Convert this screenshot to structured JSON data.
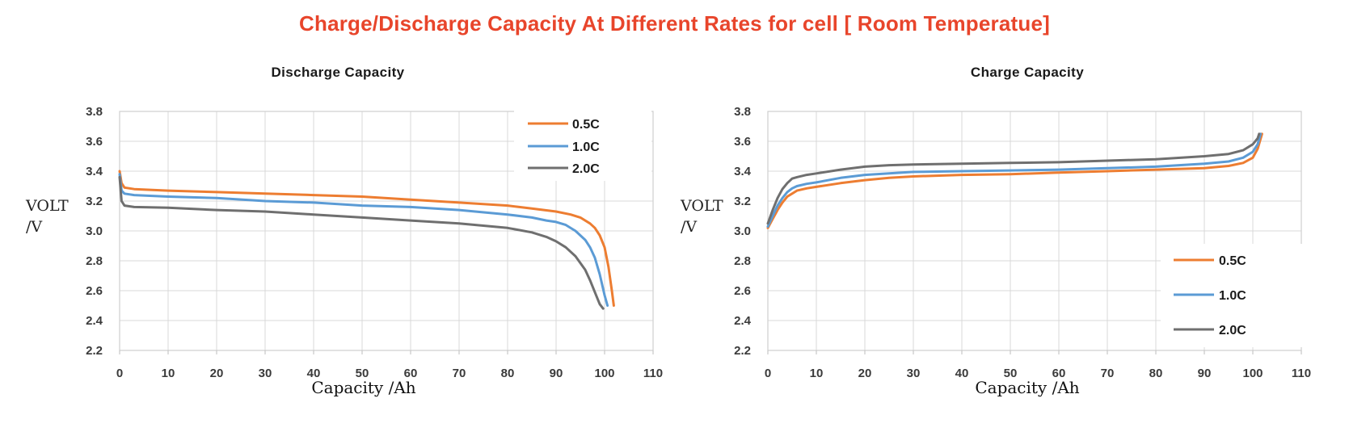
{
  "page_title": "Charge/Discharge Capacity At Different Rates for cell [ Room Temperatue]",
  "title_color": "#e8452b",
  "grid_color": "#d9d9d9",
  "chart_data": [
    {
      "type": "line",
      "title": "Discharge Capacity",
      "xlabel": "Capacity /Ah",
      "ylabel_lines": [
        "VOLT",
        "/V"
      ],
      "xlim": [
        0,
        110
      ],
      "ylim": [
        2.2,
        3.8
      ],
      "xticks": [
        0,
        10,
        20,
        30,
        40,
        50,
        60,
        70,
        80,
        90,
        100,
        110
      ],
      "yticks": [
        "3.8",
        "3.6",
        "3.4",
        "3.2",
        "3.0",
        "2.8",
        "2.6",
        "2.4",
        "2.2"
      ],
      "grid": true,
      "legend_position": "top-right",
      "series": [
        {
          "name": "0.5C",
          "color": "#ED7D31",
          "points": [
            [
              0,
              3.4
            ],
            [
              0.4,
              3.32
            ],
            [
              1,
              3.29
            ],
            [
              3,
              3.28
            ],
            [
              10,
              3.27
            ],
            [
              20,
              3.26
            ],
            [
              30,
              3.25
            ],
            [
              40,
              3.24
            ],
            [
              50,
              3.23
            ],
            [
              60,
              3.21
            ],
            [
              70,
              3.19
            ],
            [
              80,
              3.17
            ],
            [
              85,
              3.15
            ],
            [
              90,
              3.13
            ],
            [
              93,
              3.11
            ],
            [
              95,
              3.09
            ],
            [
              97,
              3.05
            ],
            [
              98,
              3.02
            ],
            [
              99,
              2.97
            ],
            [
              100,
              2.89
            ],
            [
              100.8,
              2.76
            ],
            [
              101.5,
              2.6
            ],
            [
              101.9,
              2.5
            ]
          ]
        },
        {
          "name": "1.0C",
          "color": "#5B9BD5",
          "points": [
            [
              0,
              3.38
            ],
            [
              0.4,
              3.27
            ],
            [
              1,
              3.25
            ],
            [
              3,
              3.24
            ],
            [
              10,
              3.23
            ],
            [
              20,
              3.22
            ],
            [
              30,
              3.2
            ],
            [
              40,
              3.19
            ],
            [
              50,
              3.17
            ],
            [
              60,
              3.16
            ],
            [
              70,
              3.14
            ],
            [
              80,
              3.11
            ],
            [
              85,
              3.09
            ],
            [
              88,
              3.07
            ],
            [
              90,
              3.06
            ],
            [
              92,
              3.04
            ],
            [
              94,
              3.0
            ],
            [
              96,
              2.94
            ],
            [
              97,
              2.89
            ],
            [
              98,
              2.82
            ],
            [
              99,
              2.71
            ],
            [
              100,
              2.57
            ],
            [
              100.6,
              2.5
            ]
          ]
        },
        {
          "name": "2.0C",
          "color": "#6F6F6F",
          "points": [
            [
              0,
              3.36
            ],
            [
              0.4,
              3.2
            ],
            [
              1,
              3.17
            ],
            [
              3,
              3.16
            ],
            [
              10,
              3.155
            ],
            [
              20,
              3.14
            ],
            [
              30,
              3.13
            ],
            [
              40,
              3.11
            ],
            [
              50,
              3.09
            ],
            [
              60,
              3.07
            ],
            [
              70,
              3.05
            ],
            [
              80,
              3.02
            ],
            [
              85,
              2.99
            ],
            [
              88,
              2.96
            ],
            [
              90,
              2.93
            ],
            [
              92,
              2.89
            ],
            [
              94,
              2.83
            ],
            [
              96,
              2.74
            ],
            [
              97,
              2.67
            ],
            [
              98,
              2.59
            ],
            [
              99,
              2.51
            ],
            [
              99.7,
              2.48
            ]
          ]
        }
      ]
    },
    {
      "type": "line",
      "title": "Charge Capacity",
      "xlabel": "Capacity /Ah",
      "ylabel_lines": [
        "VOLT",
        "/V"
      ],
      "xlim": [
        0,
        110
      ],
      "ylim": [
        2.2,
        3.8
      ],
      "xticks": [
        0,
        10,
        20,
        30,
        40,
        50,
        60,
        70,
        80,
        90,
        100,
        110
      ],
      "yticks": [
        "3.8",
        "3.6",
        "3.4",
        "3.2",
        "3.0",
        "2.8",
        "2.6",
        "2.4",
        "2.2"
      ],
      "grid": true,
      "legend_position": "bottom-right",
      "series": [
        {
          "name": "0.5C",
          "color": "#ED7D31",
          "points": [
            [
              0,
              3.02
            ],
            [
              1,
              3.08
            ],
            [
              2,
              3.14
            ],
            [
              3,
              3.19
            ],
            [
              4,
              3.23
            ],
            [
              5,
              3.25
            ],
            [
              6,
              3.27
            ],
            [
              8,
              3.285
            ],
            [
              10,
              3.295
            ],
            [
              15,
              3.32
            ],
            [
              20,
              3.34
            ],
            [
              25,
              3.355
            ],
            [
              30,
              3.365
            ],
            [
              40,
              3.375
            ],
            [
              50,
              3.38
            ],
            [
              60,
              3.39
            ],
            [
              70,
              3.4
            ],
            [
              80,
              3.41
            ],
            [
              90,
              3.42
            ],
            [
              95,
              3.435
            ],
            [
              98,
              3.455
            ],
            [
              100,
              3.49
            ],
            [
              101,
              3.55
            ],
            [
              101.9,
              3.65
            ]
          ]
        },
        {
          "name": "1.0C",
          "color": "#5B9BD5",
          "points": [
            [
              0,
              3.03
            ],
            [
              1,
              3.1
            ],
            [
              2,
              3.17
            ],
            [
              3,
              3.22
            ],
            [
              4,
              3.26
            ],
            [
              5,
              3.285
            ],
            [
              6,
              3.3
            ],
            [
              8,
              3.315
            ],
            [
              10,
              3.325
            ],
            [
              15,
              3.355
            ],
            [
              20,
              3.375
            ],
            [
              25,
              3.385
            ],
            [
              30,
              3.395
            ],
            [
              40,
              3.4
            ],
            [
              50,
              3.405
            ],
            [
              60,
              3.41
            ],
            [
              70,
              3.42
            ],
            [
              80,
              3.43
            ],
            [
              90,
              3.45
            ],
            [
              95,
              3.465
            ],
            [
              98,
              3.49
            ],
            [
              100,
              3.53
            ],
            [
              101,
              3.58
            ],
            [
              101.6,
              3.65
            ]
          ]
        },
        {
          "name": "2.0C",
          "color": "#6F6F6F",
          "points": [
            [
              0,
              3.05
            ],
            [
              1,
              3.14
            ],
            [
              2,
              3.22
            ],
            [
              3,
              3.28
            ],
            [
              4,
              3.32
            ],
            [
              5,
              3.35
            ],
            [
              6,
              3.36
            ],
            [
              8,
              3.375
            ],
            [
              10,
              3.385
            ],
            [
              15,
              3.41
            ],
            [
              20,
              3.43
            ],
            [
              25,
              3.44
            ],
            [
              30,
              3.445
            ],
            [
              40,
              3.45
            ],
            [
              50,
              3.455
            ],
            [
              60,
              3.46
            ],
            [
              70,
              3.47
            ],
            [
              80,
              3.48
            ],
            [
              90,
              3.5
            ],
            [
              95,
              3.515
            ],
            [
              98,
              3.54
            ],
            [
              100,
              3.58
            ],
            [
              101,
              3.62
            ],
            [
              101.3,
              3.65
            ]
          ]
        }
      ]
    }
  ]
}
